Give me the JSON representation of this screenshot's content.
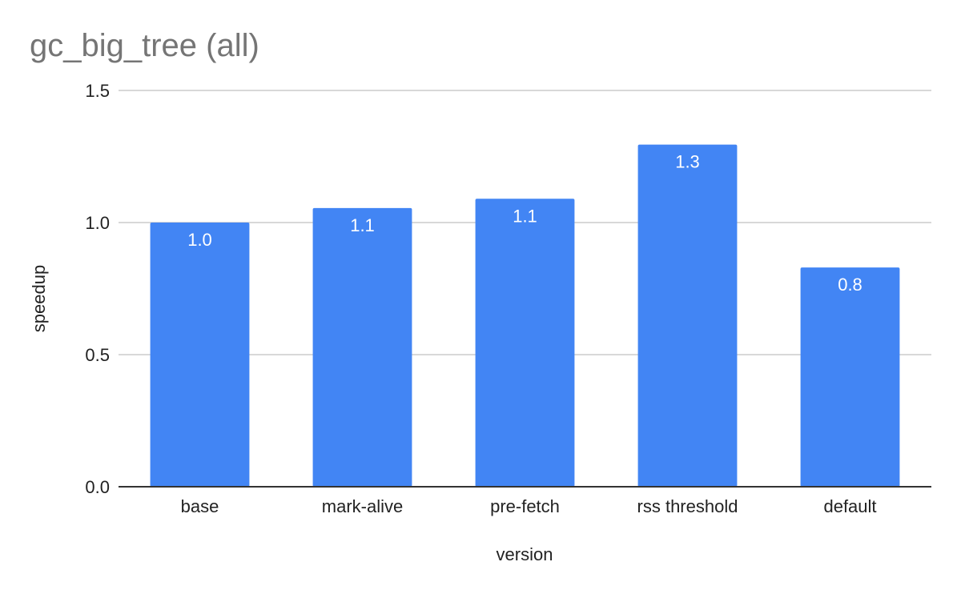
{
  "chart_data": {
    "type": "bar",
    "title": "gc_big_tree (all)",
    "xlabel": "version",
    "ylabel": "speedup",
    "categories": [
      "base",
      "mark-alive",
      "pre-fetch",
      "rss threshold",
      "default"
    ],
    "values": [
      1.0,
      1.055,
      1.09,
      1.295,
      0.83
    ],
    "data_labels": [
      "1.0",
      "1.1",
      "1.1",
      "1.3",
      "0.8"
    ],
    "ylim": [
      0,
      1.5
    ],
    "yticks": [
      0,
      0.5,
      1.0,
      1.5
    ],
    "ytick_labels": [
      "0.0",
      "0.5",
      "1.0",
      "1.5"
    ],
    "grid": true,
    "legend": "none",
    "bar_color": "#4285f4"
  }
}
